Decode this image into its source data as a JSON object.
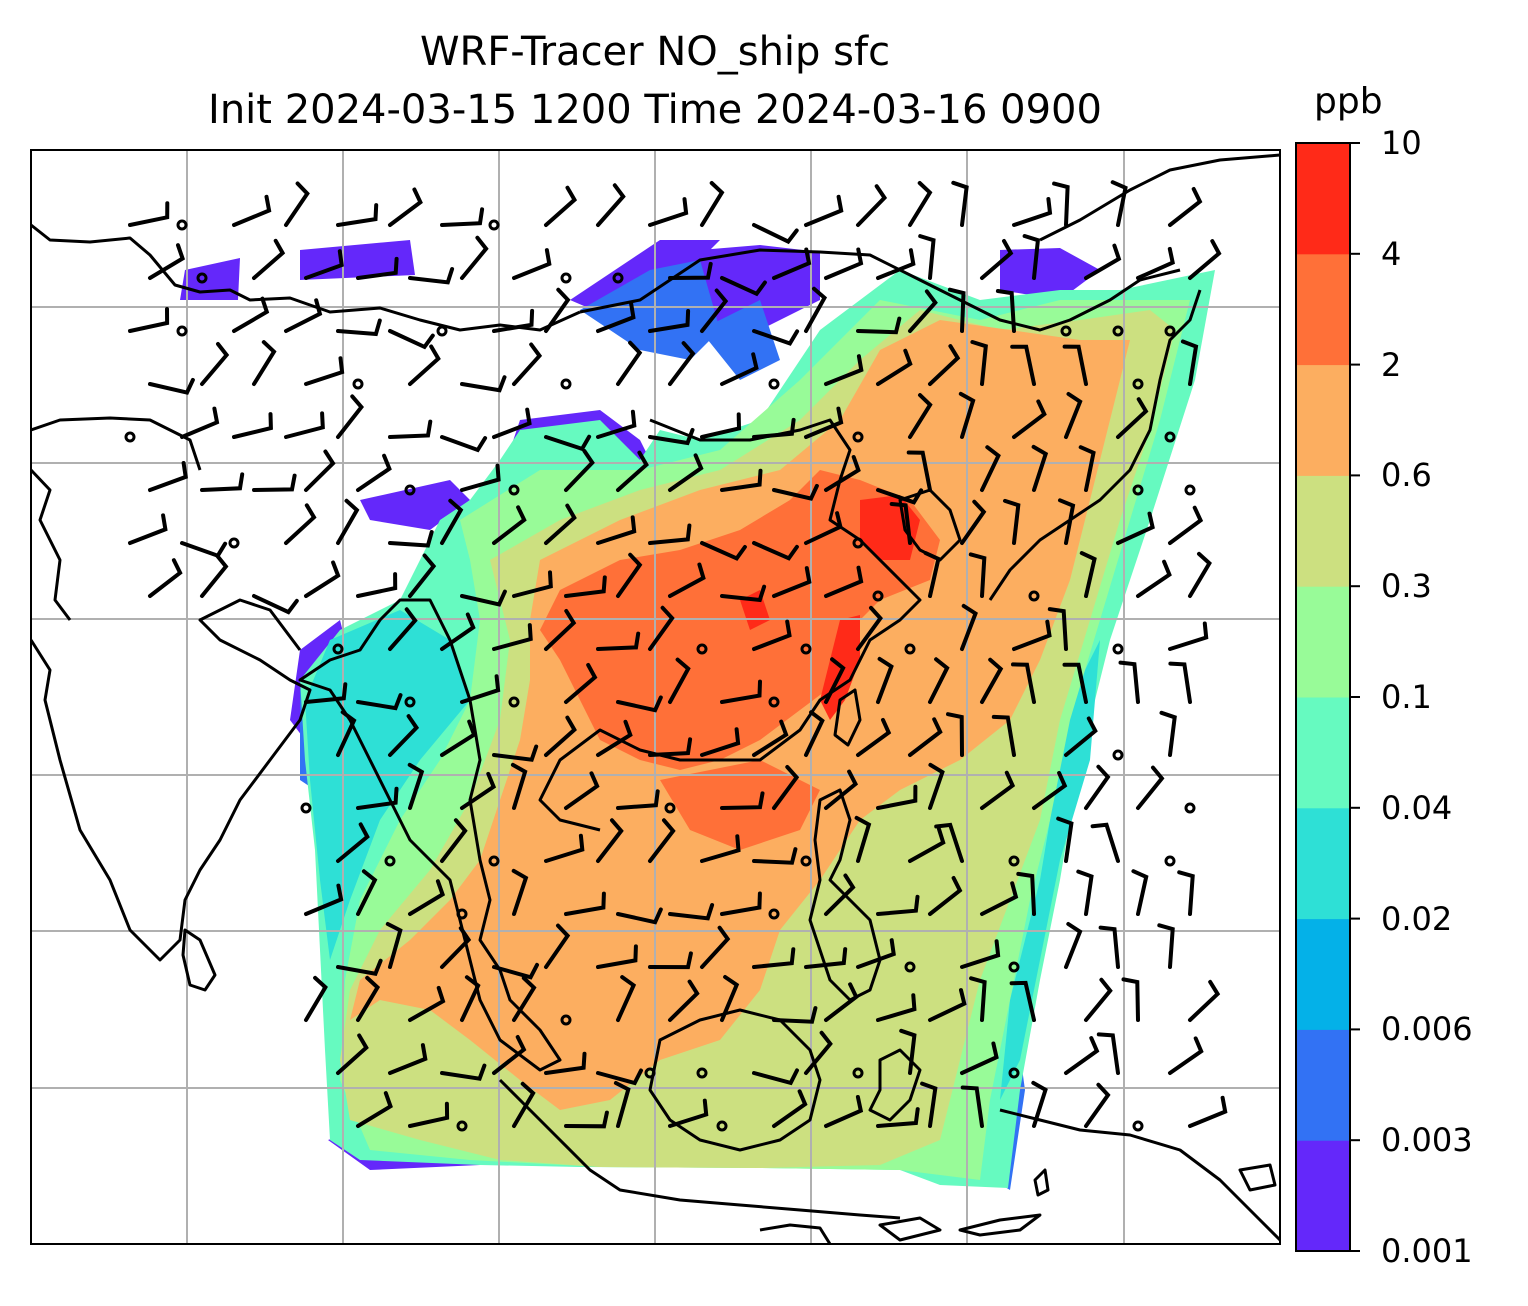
{
  "figure": {
    "title_line_1": "WRF-Tracer NO_ship sfc",
    "title_line_2": "Init 2024-03-15 1200 Time 2024-03-16 0900"
  },
  "colorbar": {
    "unit": "ppb",
    "tick_labels": [
      "10",
      "4",
      "2",
      "0.6",
      "0.3",
      "0.1",
      "0.04",
      "0.02",
      "0.006",
      "0.003",
      "0.001"
    ],
    "levels": [
      0.001,
      0.003,
      0.006,
      0.02,
      0.04,
      0.1,
      0.3,
      0.6,
      2,
      4,
      10
    ],
    "colors": [
      "#6428fa",
      "#3272f4",
      "#04b1e8",
      "#2ee0d6",
      "#66fac0",
      "#98fb98",
      "#cce080",
      "#fcae60",
      "#ff7038",
      "#ff2a18"
    ]
  },
  "map": {
    "colormap": "rainbow",
    "gridlines": true,
    "coastlines": true,
    "wind_barbs": true
  }
}
